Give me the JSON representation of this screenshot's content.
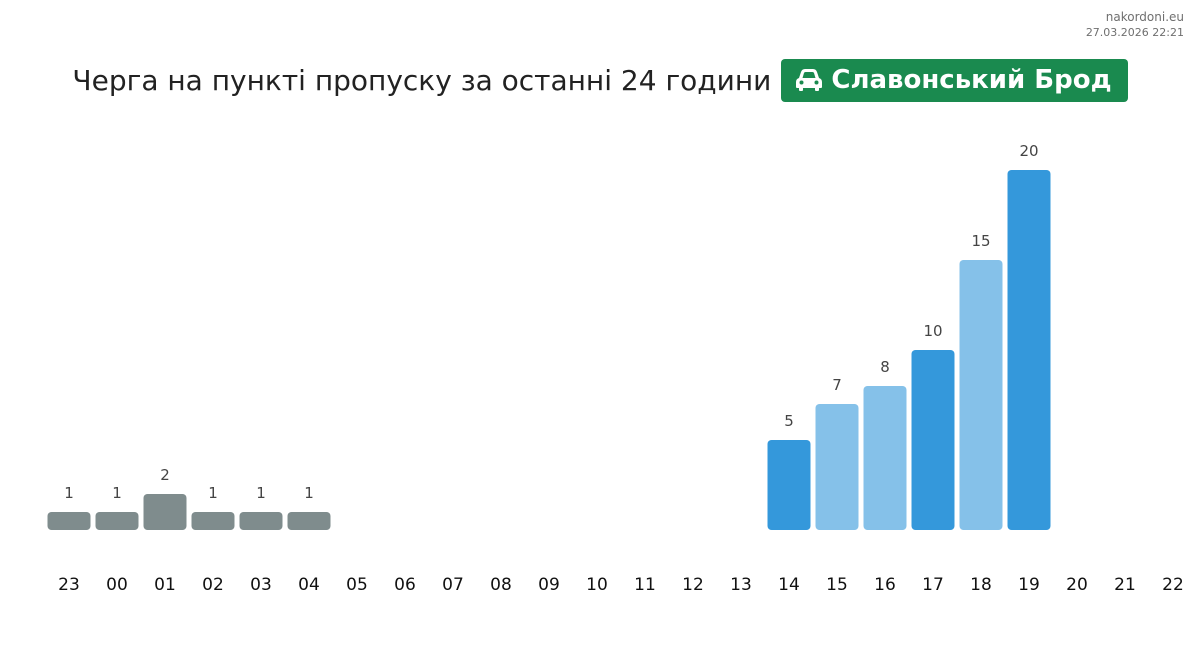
{
  "source": {
    "site": "nakordoni.eu",
    "timestamp": "27.03.2026 22:21"
  },
  "header": {
    "title": "Черга на пункті пропуску за останні 24 години",
    "checkpoint_name": "Славонський Брод",
    "checkpoint_icon": "car-icon",
    "badge_color": "#1a8a4f"
  },
  "chart_data": {
    "type": "bar",
    "title": "Черга на пункті пропуску за останні 24 години",
    "xlabel": "",
    "ylabel": "",
    "categories": [
      "23",
      "00",
      "01",
      "02",
      "03",
      "04",
      "05",
      "06",
      "07",
      "08",
      "09",
      "10",
      "11",
      "12",
      "13",
      "14",
      "15",
      "16",
      "17",
      "18",
      "19",
      "20",
      "21",
      "22"
    ],
    "values": [
      1,
      1,
      2,
      1,
      1,
      1,
      null,
      null,
      null,
      null,
      null,
      null,
      null,
      null,
      null,
      5,
      7,
      8,
      10,
      15,
      20,
      null,
      null,
      null
    ],
    "bar_colors": [
      "#7f8c8d",
      "#7f8c8d",
      "#7f8c8d",
      "#7f8c8d",
      "#7f8c8d",
      "#7f8c8d",
      null,
      null,
      null,
      null,
      null,
      null,
      null,
      null,
      null,
      "#3498db",
      "#85c1e9",
      "#85c1e9",
      "#3498db",
      "#85c1e9",
      "#3498db",
      null,
      null,
      null
    ],
    "ylim": [
      0,
      20
    ],
    "grid": false,
    "legend": "none"
  }
}
